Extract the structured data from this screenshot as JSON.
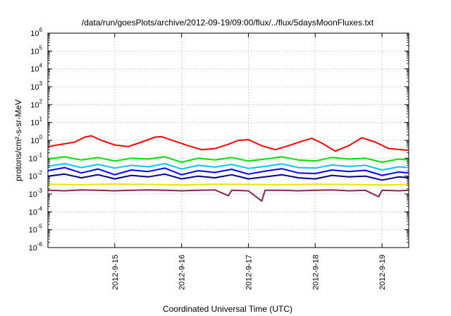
{
  "chart_data": {
    "type": "line",
    "title": "/data/run/goesPlots/archive/2012-09-19/09:00/flux/../flux/5daysMoonFluxes.txt",
    "xlabel": "Coordinated Universal Time (UTC)",
    "ylabel": "protons/cm²-s-sr-MeV",
    "y_scale": "log",
    "ylim": [
      1e-06,
      1000000.0
    ],
    "xlim": [
      0,
      5.4
    ],
    "x_origin_note_hidden": true,
    "x_ticks": [
      {
        "label": "2012-9-15",
        "value": 1
      },
      {
        "label": "2012-9-16",
        "value": 2
      },
      {
        "label": "2012-9-17",
        "value": 3
      },
      {
        "label": "2012-9-18",
        "value": 4
      },
      {
        "label": "2012-9-19",
        "value": 5
      }
    ],
    "y_ticks": [
      {
        "base": "10",
        "exp": "6",
        "value": 6
      },
      {
        "base": "10",
        "exp": "5",
        "value": 5
      },
      {
        "base": "10",
        "exp": "4",
        "value": 4
      },
      {
        "base": "10",
        "exp": "3",
        "value": 3
      },
      {
        "base": "10",
        "exp": "2",
        "value": 2
      },
      {
        "base": "10",
        "exp": "1",
        "value": 1
      },
      {
        "base": "10",
        "exp": "0",
        "value": 0
      },
      {
        "base": "10",
        "exp": "-1",
        "value": -1
      },
      {
        "base": "10",
        "exp": "-2",
        "value": -2
      },
      {
        "base": "10",
        "exp": "-3",
        "value": -3
      },
      {
        "base": "10",
        "exp": "-4",
        "value": -4
      },
      {
        "base": "10",
        "exp": "-5",
        "value": -5
      },
      {
        "base": "10",
        "exp": "-6",
        "value": -6
      }
    ],
    "grid": true,
    "series": [
      {
        "color": "#ff0000",
        "x": [
          0,
          0.2,
          0.4,
          0.55,
          0.65,
          0.8,
          1.0,
          1.2,
          1.4,
          1.6,
          1.7,
          1.9,
          2.1,
          2.3,
          2.5,
          2.7,
          2.85,
          3.0,
          3.2,
          3.4,
          3.6,
          3.8,
          3.95,
          4.1,
          4.3,
          4.5,
          4.7,
          4.9,
          5.1,
          5.3,
          5.4
        ],
        "y": [
          0.45,
          0.6,
          0.8,
          1.5,
          1.8,
          1.0,
          0.55,
          0.45,
          0.8,
          1.5,
          1.6,
          0.9,
          0.5,
          0.3,
          0.35,
          0.6,
          1.0,
          1.1,
          0.5,
          0.3,
          0.5,
          0.9,
          1.3,
          0.7,
          0.25,
          0.5,
          1.4,
          0.8,
          0.35,
          0.3,
          0.28
        ]
      },
      {
        "color": "#00e000",
        "x": [
          0,
          0.25,
          0.5,
          0.75,
          1.0,
          1.25,
          1.5,
          1.75,
          2.0,
          2.25,
          2.5,
          2.75,
          3.0,
          3.25,
          3.5,
          3.75,
          4.0,
          4.25,
          4.5,
          4.75,
          5.0,
          5.25,
          5.4
        ],
        "y": [
          0.09,
          0.12,
          0.08,
          0.11,
          0.07,
          0.1,
          0.09,
          0.12,
          0.06,
          0.1,
          0.08,
          0.11,
          0.07,
          0.09,
          0.12,
          0.08,
          0.07,
          0.11,
          0.09,
          0.1,
          0.06,
          0.09,
          0.08
        ]
      },
      {
        "color": "#00c8ff",
        "x": [
          0,
          0.25,
          0.5,
          0.75,
          1.0,
          1.25,
          1.5,
          1.75,
          2.0,
          2.25,
          2.5,
          2.75,
          3.0,
          3.25,
          3.5,
          3.75,
          4.0,
          4.25,
          4.5,
          4.75,
          5.0,
          5.25,
          5.4
        ],
        "y": [
          0.035,
          0.05,
          0.03,
          0.045,
          0.028,
          0.04,
          0.033,
          0.05,
          0.025,
          0.04,
          0.032,
          0.045,
          0.027,
          0.035,
          0.048,
          0.03,
          0.028,
          0.042,
          0.035,
          0.04,
          0.022,
          0.033,
          0.03
        ]
      },
      {
        "color": "#0000ff",
        "x": [
          0,
          0.25,
          0.5,
          0.75,
          1.0,
          1.25,
          1.5,
          1.75,
          2.0,
          2.25,
          2.5,
          2.75,
          3.0,
          3.25,
          3.5,
          3.75,
          4.0,
          4.25,
          4.5,
          4.75,
          5.0,
          5.25,
          5.4
        ],
        "y": [
          0.02,
          0.03,
          0.015,
          0.025,
          0.012,
          0.022,
          0.018,
          0.028,
          0.012,
          0.02,
          0.016,
          0.024,
          0.013,
          0.019,
          0.026,
          0.015,
          0.014,
          0.022,
          0.018,
          0.021,
          0.011,
          0.017,
          0.015
        ]
      },
      {
        "color": "#00008b",
        "x": [
          0,
          0.25,
          0.5,
          0.75,
          1.0,
          1.25,
          1.5,
          1.75,
          2.0,
          2.25,
          2.5,
          2.75,
          3.0,
          3.25,
          3.5,
          3.75,
          4.0,
          4.25,
          4.5,
          4.75,
          5.0,
          5.25,
          5.4
        ],
        "y": [
          0.01,
          0.013,
          0.008,
          0.012,
          0.007,
          0.011,
          0.009,
          0.013,
          0.007,
          0.01,
          0.008,
          0.012,
          0.007,
          0.009,
          0.012,
          0.008,
          0.007,
          0.011,
          0.009,
          0.01,
          0.006,
          0.009,
          0.008
        ]
      },
      {
        "color": "#e6e600",
        "x": [
          0,
          0.5,
          1.0,
          1.5,
          2.0,
          2.5,
          3.0,
          3.5,
          4.0,
          4.5,
          5.0,
          5.4
        ],
        "y": [
          0.0035,
          0.0033,
          0.0036,
          0.0034,
          0.0032,
          0.0035,
          0.0034,
          0.0033,
          0.0035,
          0.0034,
          0.0032,
          0.0034
        ]
      },
      {
        "color": "#8b2252",
        "x": [
          0,
          0.25,
          0.5,
          0.75,
          1.0,
          1.25,
          1.5,
          1.75,
          2.0,
          2.25,
          2.5,
          2.7,
          2.75,
          3.0,
          3.2,
          3.25,
          3.5,
          3.75,
          4.0,
          4.25,
          4.5,
          4.75,
          4.95,
          5.0,
          5.25,
          5.4
        ],
        "y": [
          0.0016,
          0.0015,
          0.0017,
          0.0016,
          0.0015,
          0.0016,
          0.0017,
          0.0016,
          0.0015,
          0.0016,
          0.0017,
          0.0008,
          0.0016,
          0.0015,
          0.0004,
          0.0016,
          0.0016,
          0.0015,
          0.0016,
          0.0017,
          0.0015,
          0.0016,
          0.0007,
          0.0016,
          0.0015,
          0.0016
        ]
      }
    ]
  }
}
